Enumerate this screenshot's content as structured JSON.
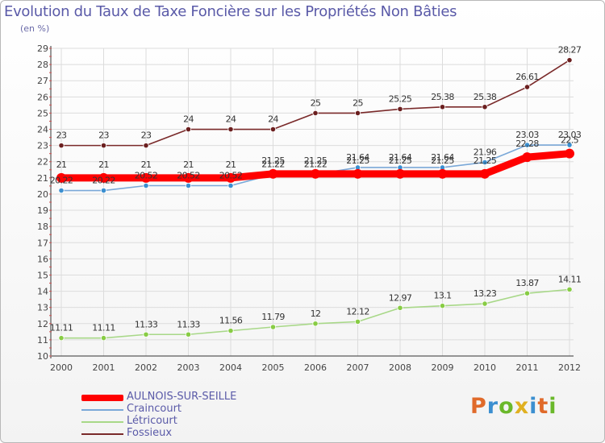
{
  "title": "Evolution du Taux de Taxe Foncière sur les Propriétés Non Bâties",
  "subtitle": "(en %)",
  "logo": {
    "text": "Proxiti",
    "colors": [
      "#e06a2a",
      "#3b8fd0",
      "#6ab82a",
      "#e0b020",
      "#3b8fd0",
      "#e06a2a",
      "#6ab82a"
    ]
  },
  "chart_data": {
    "type": "line",
    "title": "Evolution du Taux de Taxe Foncière sur les Propriétés Non Bâties",
    "ylabel": "(en %)",
    "xlabel": "",
    "categories": [
      "2000",
      "2001",
      "2002",
      "2003",
      "2004",
      "2005",
      "2006",
      "2007",
      "2008",
      "2009",
      "2010",
      "2011",
      "2012"
    ],
    "ylim": [
      10,
      29
    ],
    "yticks": [
      "10",
      "11",
      "12",
      "13",
      "14",
      "15",
      "16",
      "17",
      "18",
      "19",
      "20",
      "21",
      "22",
      "23",
      "24",
      "25",
      "26",
      "27",
      "28",
      "29"
    ],
    "grid": true,
    "series": [
      {
        "name": "Fossieux",
        "color": "#7a2a2a",
        "marker": "#6b1f1f",
        "values": [
          23,
          23,
          23,
          24,
          24,
          24,
          25,
          25,
          25.25,
          25.38,
          25.38,
          26.61,
          28.27
        ],
        "labels": [
          "23",
          "23",
          "23",
          "24",
          "24",
          "24",
          "25",
          "25",
          "25.25",
          "25.38",
          "25.38",
          "26.61",
          "28.27"
        ]
      },
      {
        "name": "Craincourt",
        "color": "#7aa8d8",
        "marker": "#3b8fd0",
        "values": [
          20.22,
          20.22,
          20.52,
          20.52,
          20.52,
          21.22,
          21.22,
          21.64,
          21.64,
          21.64,
          21.96,
          23.03,
          23.03
        ],
        "labels": [
          "20.22",
          "20.22",
          "20.52",
          "20.52",
          "20.52",
          "21.22",
          "21.22",
          "21.64",
          "21.64",
          "21.64",
          "21.96",
          "23.03",
          "23.03"
        ]
      },
      {
        "name": "AULNOIS-SUR-SEILLE",
        "color": "#ff0000",
        "marker": "#ff0000",
        "values": [
          21,
          21,
          21,
          21,
          21,
          21.25,
          21.25,
          21.25,
          21.25,
          21.25,
          21.25,
          22.28,
          22.5
        ],
        "labels": [
          "21",
          "21",
          "21",
          "21",
          "21",
          "21.25",
          "21.25",
          "21.25",
          "21.25",
          "21.25",
          "21.25",
          "22.28",
          "22.5"
        ]
      },
      {
        "name": "Létricourt",
        "color": "#a8d888",
        "marker": "#88cc44",
        "values": [
          11.11,
          11.11,
          11.33,
          11.33,
          11.56,
          11.79,
          12,
          12.12,
          12.97,
          13.1,
          13.23,
          13.87,
          14.11
        ],
        "labels": [
          "11.11",
          "11.11",
          "11.33",
          "11.33",
          "11.56",
          "11.79",
          "12",
          "12.12",
          "12.97",
          "13.1",
          "13.23",
          "13.87",
          "14.11"
        ]
      }
    ]
  },
  "legend": [
    {
      "label": "AULNOIS-SUR-SEILLE",
      "color": "#ff0000"
    },
    {
      "label": "Craincourt",
      "color": "#7aa8d8"
    },
    {
      "label": "Létricourt",
      "color": "#a8d888"
    },
    {
      "label": "Fossieux",
      "color": "#7a2a2a"
    }
  ]
}
